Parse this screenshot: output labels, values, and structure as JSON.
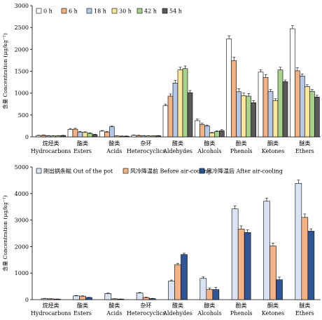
{
  "chart_data": [
    {
      "type": "bar",
      "ylabel": "含量 Concentration (μg/kg⁻¹)",
      "ylim": [
        0,
        3000
      ],
      "yticks": [
        0,
        500,
        1000,
        1500,
        2000,
        2500,
        3000
      ],
      "categories": [
        {
          "cn": "烷烃类",
          "en": "Hydrocarbons"
        },
        {
          "cn": "酯类",
          "en": "Esters"
        },
        {
          "cn": "酸类",
          "en": "Acids"
        },
        {
          "cn": "杂环",
          "en": "Heterocyclics"
        },
        {
          "cn": "醛类",
          "en": "Aldehydes"
        },
        {
          "cn": "醇类",
          "en": "Alcohols"
        },
        {
          "cn": "酚类",
          "en": "Phenols"
        },
        {
          "cn": "酮类",
          "en": "Ketones"
        },
        {
          "cn": "醚类",
          "en": "Ethers"
        }
      ],
      "legend_position": "top-left",
      "series": [
        {
          "name": "0 h",
          "color": "#ffffff",
          "values": [
            30,
            170,
            130,
            35,
            710,
            370,
            2240,
            1480,
            2470
          ],
          "errors": [
            8,
            20,
            15,
            8,
            40,
            35,
            70,
            50,
            70
          ]
        },
        {
          "name": "6 h",
          "color": "#f4b183",
          "values": [
            35,
            175,
            110,
            30,
            930,
            280,
            1740,
            1360,
            1510
          ],
          "errors": [
            8,
            20,
            15,
            8,
            50,
            30,
            80,
            60,
            70
          ]
        },
        {
          "name": "18 h",
          "color": "#b4c7e7",
          "values": [
            25,
            110,
            230,
            25,
            1230,
            250,
            1030,
            1040,
            1390
          ],
          "errors": [
            6,
            15,
            15,
            6,
            60,
            20,
            70,
            40,
            50
          ]
        },
        {
          "name": "30 h",
          "color": "#ffe699",
          "values": [
            20,
            100,
            20,
            20,
            1530,
            90,
            940,
            830,
            1150
          ],
          "errors": [
            5,
            15,
            5,
            5,
            60,
            15,
            60,
            40,
            40
          ]
        },
        {
          "name": "42 h",
          "color": "#a9d18e",
          "values": [
            25,
            80,
            15,
            20,
            1560,
            120,
            930,
            1530,
            1040
          ],
          "errors": [
            5,
            12,
            5,
            5,
            60,
            20,
            60,
            60,
            40
          ]
        },
        {
          "name": "54 h",
          "color": "#595959",
          "values": [
            30,
            50,
            15,
            25,
            1010,
            140,
            780,
            1260,
            910
          ],
          "errors": [
            6,
            10,
            5,
            5,
            50,
            25,
            50,
            40,
            40
          ]
        }
      ]
    },
    {
      "type": "bar",
      "ylabel": "含量 Concentration (μg/kg⁻¹)",
      "ylim": [
        0,
        5000
      ],
      "yticks": [
        0,
        1000,
        2000,
        3000,
        4000,
        5000
      ],
      "categories": [
        {
          "cn": "烷烃类",
          "en": "Hydrocarbons"
        },
        {
          "cn": "酯类",
          "en": "Esters"
        },
        {
          "cn": "酸类",
          "en": "Acids"
        },
        {
          "cn": "杂环",
          "en": "Heterocyclics"
        },
        {
          "cn": "醛类",
          "en": "Aldehydes"
        },
        {
          "cn": "醇类",
          "en": "Alcohols"
        },
        {
          "cn": "酚类",
          "en": "Phenols"
        },
        {
          "cn": "酮类",
          "en": "Ketones"
        },
        {
          "cn": "醚类",
          "en": "Ethers"
        }
      ],
      "legend_position": "top",
      "series": [
        {
          "name": "刚出锅条糍 Out of the pot",
          "color": "#dae3f3",
          "values": [
            40,
            140,
            230,
            250,
            700,
            800,
            3420,
            3710,
            4380
          ],
          "errors": [
            10,
            15,
            20,
            20,
            40,
            60,
            120,
            120,
            130
          ]
        },
        {
          "name": "风冷降温前 Before air-cooling",
          "color": "#f4b183",
          "values": [
            30,
            130,
            30,
            80,
            1320,
            380,
            2660,
            2020,
            3100
          ],
          "errors": [
            8,
            15,
            8,
            15,
            50,
            60,
            120,
            110,
            130
          ]
        },
        {
          "name": "风冷降温后 After air-cooling",
          "color": "#2f5597",
          "values": [
            20,
            80,
            20,
            40,
            1700,
            380,
            2530,
            750,
            2580
          ],
          "errors": [
            6,
            10,
            6,
            10,
            50,
            80,
            100,
            100,
            90
          ]
        }
      ]
    }
  ]
}
